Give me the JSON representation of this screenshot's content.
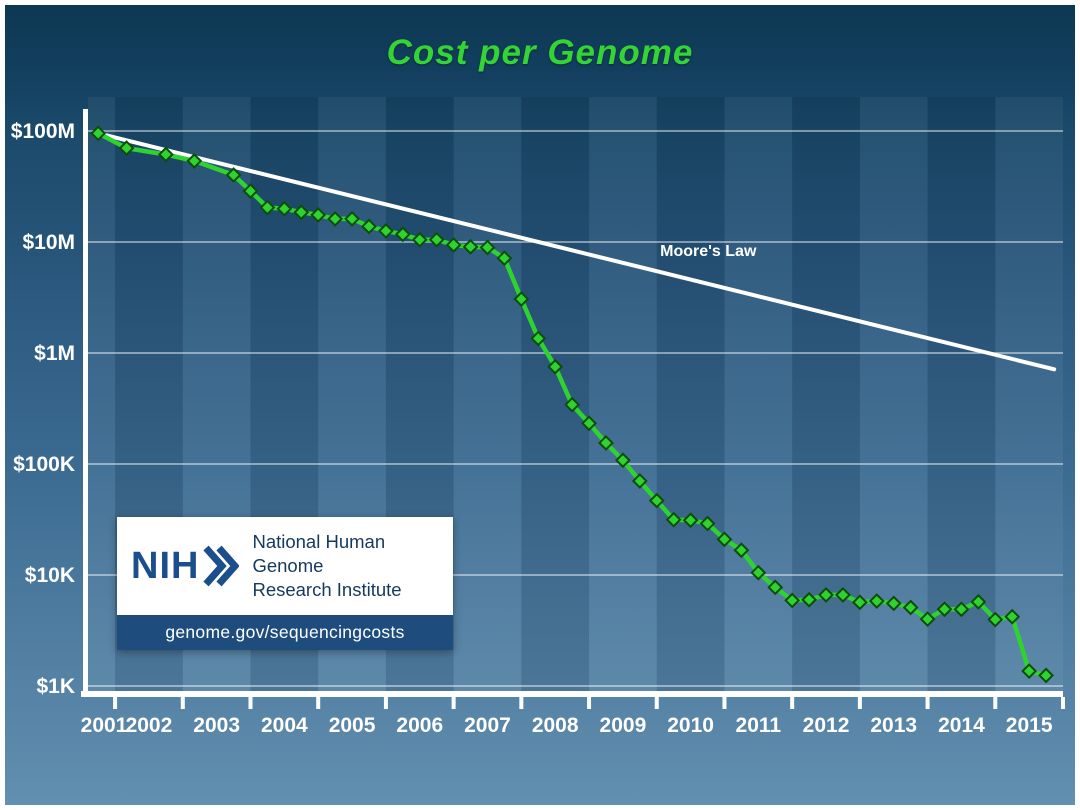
{
  "slide": {
    "title": "Cost per Genome",
    "title_color": "#35d435"
  },
  "logo_box": {
    "acronym": "NIH",
    "org_line1": "National Human Genome",
    "org_line2": "Research Institute",
    "url": "genome.gov/sequencingcosts"
  },
  "chart_data": {
    "type": "line",
    "title": "Cost per Genome",
    "y_axis": {
      "scale": "log",
      "tick_labels": [
        "$100M",
        "$10M",
        "$1M",
        "$100K",
        "$10K",
        "$1K"
      ],
      "tick_values": [
        100000000,
        10000000,
        1000000,
        100000,
        10000,
        1000
      ]
    },
    "x_axis": {
      "tick_labels": [
        "2001",
        "2002",
        "2003",
        "2004",
        "2005",
        "2006",
        "2007",
        "2008",
        "2009",
        "2010",
        "2011",
        "2012",
        "2013",
        "2014",
        "2015"
      ],
      "range": [
        2001.6,
        2016.0
      ]
    },
    "grid": true,
    "annotations": [
      {
        "text": "Moore's Law",
        "x": 2010.05,
        "value": 8500000
      }
    ],
    "series": [
      {
        "name": "Cost per Genome",
        "color": "#2fd32f",
        "marker": "diamond",
        "marker_outline": "#0b4d0b",
        "x": [
          2001.75,
          2002.17,
          2002.75,
          2003.17,
          2003.75,
          2004.0,
          2004.25,
          2004.5,
          2004.75,
          2005.0,
          2005.25,
          2005.5,
          2005.75,
          2006.0,
          2006.25,
          2006.5,
          2006.75,
          2007.0,
          2007.25,
          2007.5,
          2007.75,
          2008.0,
          2008.25,
          2008.5,
          2008.75,
          2009.0,
          2009.25,
          2009.5,
          2009.75,
          2010.0,
          2010.25,
          2010.5,
          2010.75,
          2011.0,
          2011.25,
          2011.5,
          2011.75,
          2012.0,
          2012.25,
          2012.5,
          2012.75,
          2013.0,
          2013.25,
          2013.5,
          2013.75,
          2014.0,
          2014.25,
          2014.5,
          2014.75,
          2015.0,
          2015.25,
          2015.5,
          2015.75
        ],
        "y": [
          95263072,
          70175437,
          61448422,
          53751684,
          40157554,
          28780376,
          20442576,
          19934346,
          18519312,
          17534970,
          16159699,
          16180224,
          13801124,
          12585659,
          11732535,
          10474556,
          10497842,
          9408739,
          9047003,
          8927342,
          7147571,
          3063820,
          1352982,
          752080,
          342502,
          232735,
          154714,
          108065,
          70333,
          46774,
          31512,
          31125,
          29092,
          20963,
          16712,
          10497,
          7743,
          5901,
          5985,
          6618,
          6618,
          5671,
          5826,
          5550,
          5096,
          4008,
          4920,
          4905,
          5731,
          3970,
          4211,
          1363,
          1245
        ]
      },
      {
        "name": "Moore's Law",
        "color": "#ffffff",
        "marker": "none",
        "x": [
          2001.75,
          2015.87
        ],
        "y": [
          95263072,
          713000
        ]
      }
    ]
  }
}
